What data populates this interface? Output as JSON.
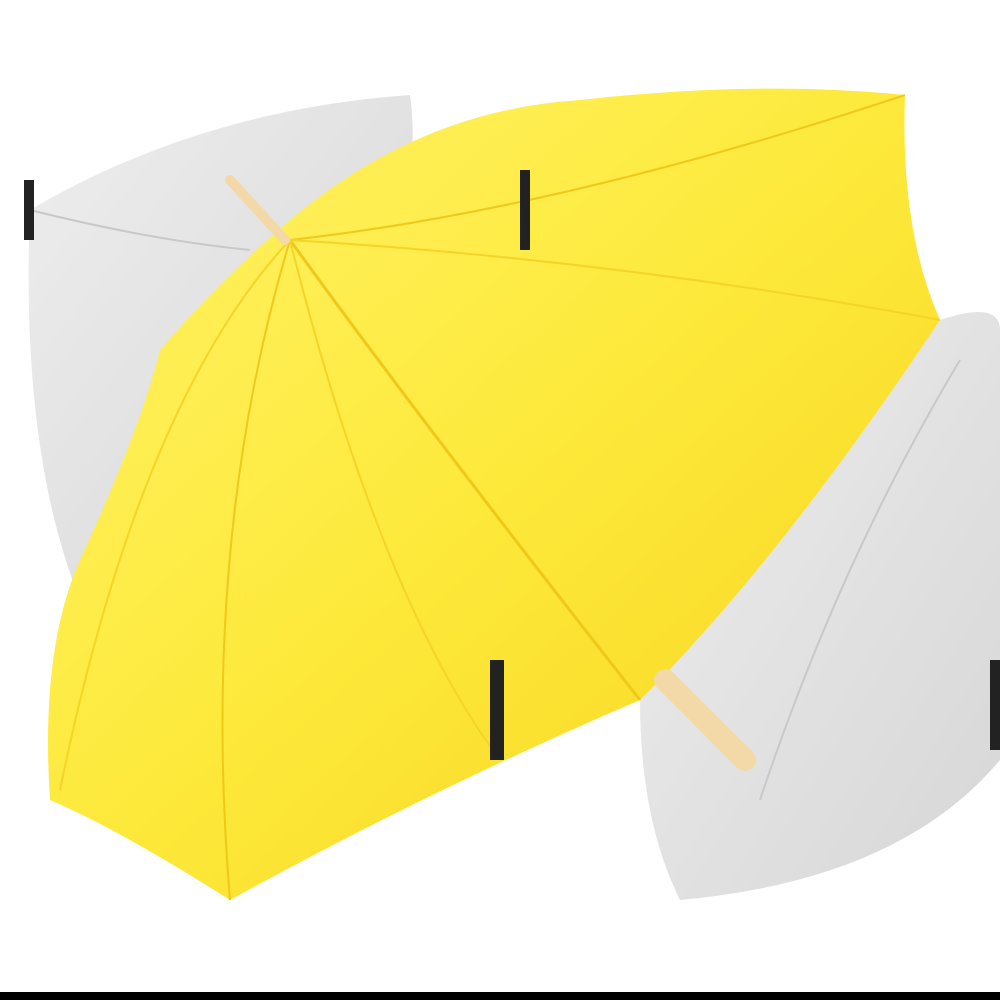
{
  "image": {
    "subject": "umbrellas",
    "colors": {
      "front_canopy": "#fde93a",
      "front_canopy_shade": "#f7d21e",
      "front_canopy_light": "#fff36a",
      "back_canopy": "#e6e6e6",
      "back_canopy_shade": "#d4d4d4",
      "handle": "#f3d9a8",
      "tips": "#222222",
      "background": "#ffffff"
    }
  }
}
